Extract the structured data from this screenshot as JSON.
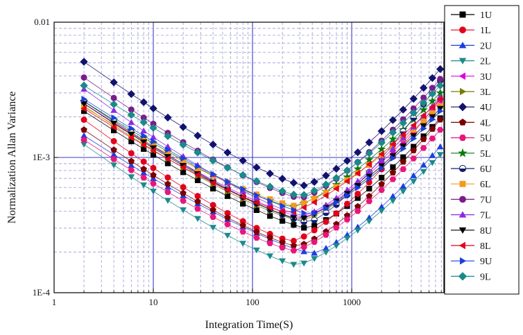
{
  "chart_data": {
    "type": "scatter",
    "xlabel": "Integration Time(S)",
    "ylabel": "Normalization Allan Variance",
    "xscale": "log",
    "yscale": "log",
    "xlim": [
      1,
      8500
    ],
    "ylim": [
      0.0001,
      0.01
    ],
    "x_ticks": [
      {
        "value": 1,
        "label": "1"
      },
      {
        "value": 10,
        "label": "10"
      },
      {
        "value": 100,
        "label": "100"
      },
      {
        "value": 1000,
        "label": "1000"
      }
    ],
    "y_ticks": [
      {
        "value": 0.0001,
        "label": "1E-4"
      },
      {
        "value": 0.001,
        "label": "1E-3"
      },
      {
        "value": 0.01,
        "label": "0.01"
      }
    ],
    "grid": true,
    "legend_position": "right",
    "x": [
      2,
      4,
      6,
      8,
      10,
      14,
      20,
      28,
      40,
      56,
      80,
      110,
      150,
      200,
      260,
      330,
      420,
      550,
      700,
      900,
      1150,
      1500,
      2000,
      2600,
      3300,
      4200,
      5300,
      6500,
      7800
    ],
    "series": [
      {
        "name": "1U",
        "color": "#000000",
        "marker": "square",
        "v_start": 0.0022,
        "v_min": 0.0003,
        "t_min": 350,
        "v_end": 0.00195
      },
      {
        "name": "1L",
        "color": "#e3001b",
        "marker": "circle",
        "v_start": 0.0019,
        "v_min": 0.00024,
        "t_min": 250,
        "v_end": 0.0027
      },
      {
        "name": "2U",
        "color": "#1a3fe0",
        "marker": "triangle-up",
        "v_start": 0.00145,
        "v_min": 0.000195,
        "t_min": 400,
        "v_end": 0.0012
      },
      {
        "name": "2L",
        "color": "#1a8a8a",
        "marker": "triangle-down",
        "v_start": 0.00125,
        "v_min": 0.00016,
        "t_min": 280,
        "v_end": 0.00105
      },
      {
        "name": "3U",
        "color": "#e000d8",
        "marker": "triangle-left",
        "v_start": 0.0025,
        "v_min": 0.00036,
        "t_min": 320,
        "v_end": 0.0026
      },
      {
        "name": "3L",
        "color": "#7a7a00",
        "marker": "triangle-right",
        "v_start": 0.0024,
        "v_min": 0.00034,
        "t_min": 300,
        "v_end": 0.0022
      },
      {
        "name": "4U",
        "color": "#12126e",
        "marker": "diamond",
        "v_start": 0.0051,
        "v_min": 0.00062,
        "t_min": 330,
        "v_end": 0.0045
      },
      {
        "name": "4L",
        "color": "#7a0000",
        "marker": "pentagon",
        "v_start": 0.0016,
        "v_min": 0.00022,
        "t_min": 280,
        "v_end": 0.0019
      },
      {
        "name": "5U",
        "color": "#e8157a",
        "marker": "hexagon",
        "v_start": 0.00135,
        "v_min": 0.000205,
        "t_min": 260,
        "v_end": 0.0016
      },
      {
        "name": "5L",
        "color": "#0a7a0a",
        "marker": "star",
        "v_start": 0.0026,
        "v_min": 0.00043,
        "t_min": 250,
        "v_end": 0.003
      },
      {
        "name": "6U",
        "color": "#10206e",
        "marker": "circle-half",
        "v_start": 0.0026,
        "v_min": 0.00033,
        "t_min": 360,
        "v_end": 0.0037
      },
      {
        "name": "6L",
        "color": "#f39a1e",
        "marker": "square",
        "v_start": 0.00235,
        "v_min": 0.00044,
        "t_min": 260,
        "v_end": 0.0024
      },
      {
        "name": "7U",
        "color": "#7a1c8c",
        "marker": "circle",
        "v_start": 0.0039,
        "v_min": 0.0005,
        "t_min": 300,
        "v_end": 0.0038
      },
      {
        "name": "7L",
        "color": "#8a2be2",
        "marker": "triangle-up",
        "v_start": 0.0032,
        "v_min": 0.00037,
        "t_min": 320,
        "v_end": 0.0028
      },
      {
        "name": "8U",
        "color": "#000000",
        "marker": "triangle-down",
        "v_start": 0.0025,
        "v_min": 0.00035,
        "t_min": 300,
        "v_end": 0.0023
      },
      {
        "name": "8L",
        "color": "#e3001b",
        "marker": "triangle-left",
        "v_start": 0.0023,
        "v_min": 0.00039,
        "t_min": 230,
        "v_end": 0.0027
      },
      {
        "name": "9U",
        "color": "#1a3fe0",
        "marker": "triangle-right",
        "v_start": 0.0027,
        "v_min": 0.00038,
        "t_min": 380,
        "v_end": 0.0022
      },
      {
        "name": "9L",
        "color": "#1a8a8a",
        "marker": "diamond",
        "v_start": 0.0034,
        "v_min": 0.00052,
        "t_min": 300,
        "v_end": 0.0034
      }
    ]
  }
}
